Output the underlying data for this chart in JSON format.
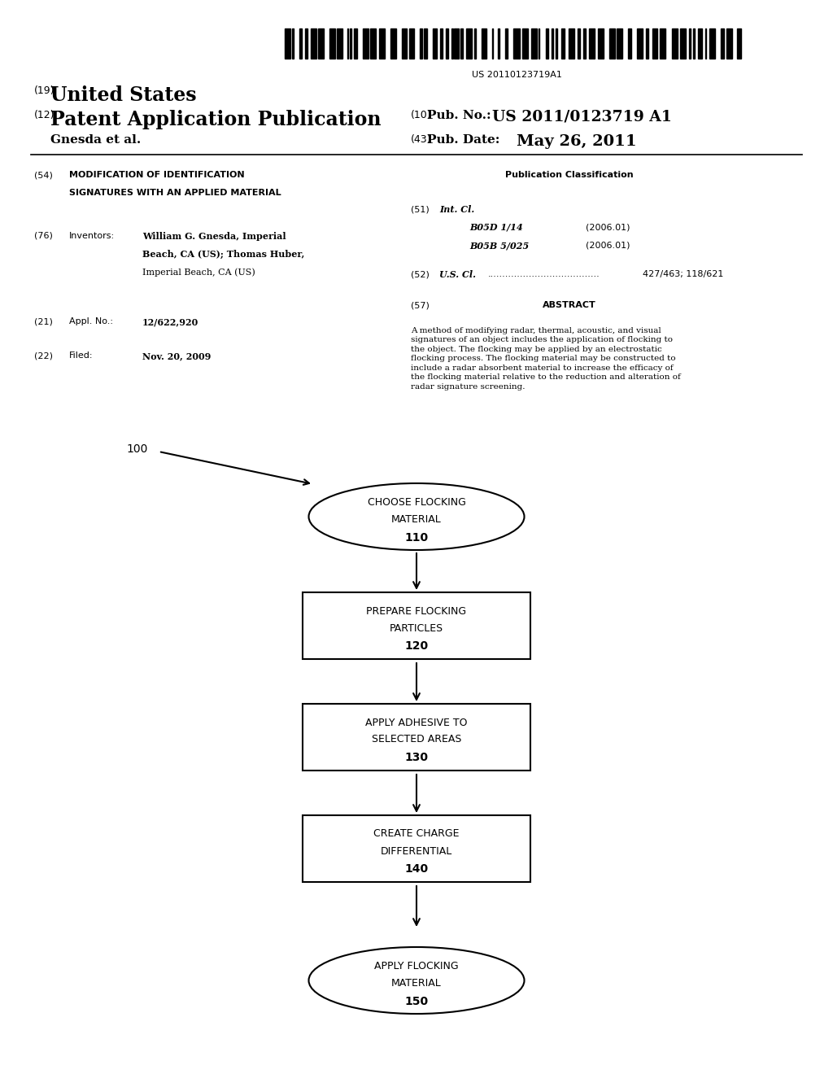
{
  "bg_color": "#ffffff",
  "barcode_text": "US 20110123719A1",
  "header_line1_num": "(19)",
  "header_line1_text": "United States",
  "header_line2_num": "(12)",
  "header_line2_text": "Patent Application Publication",
  "header_line2_right_num": "(10)",
  "header_line2_right_label": "Pub. No.:",
  "header_line2_right_val": "US 2011/0123719 A1",
  "header_line3_left": "Gnesda et al.",
  "header_line3_right_num": "(43)",
  "header_line3_right_label": "Pub. Date:",
  "header_line3_right_val": "May 26, 2011",
  "field54_num": "(54)",
  "field54_title1": "MODIFICATION OF IDENTIFICATION",
  "field54_title2": "SIGNATURES WITH AN APPLIED MATERIAL",
  "pub_class_header": "Publication Classification",
  "field51_num": "(51)",
  "field51_label": "Int. Cl.",
  "field51_b1": "B05D 1/14",
  "field51_b1_year": "(2006.01)",
  "field51_b2": "B05B 5/025",
  "field51_b2_year": "(2006.01)",
  "field52_num": "(52)",
  "field52_label": "U.S. Cl.",
  "field52_dots": "......................................",
  "field52_val": "427/463; 118/621",
  "field57_num": "(57)",
  "field57_label": "ABSTRACT",
  "abstract_text": "A method of modifying radar, thermal, acoustic, and visual\nsignatures of an object includes the application of flocking to\nthe object. The flocking may be applied by an electrostatic\nflocking process. The flocking material may be constructed to\ninclude a radar absorbent material to increase the efficacy of\nthe flocking material relative to the reduction and alteration of\nradar signature screening.",
  "field76_num": "(76)",
  "field76_label": "Inventors:",
  "field76_val1": "William G. Gnesda, Imperial",
  "field76_val2": "Beach, CA (US); Thomas Huber,",
  "field76_val3": "Imperial Beach, CA (US)",
  "field21_num": "(21)",
  "field21_label": "Appl. No.:",
  "field21_val": "12/622,920",
  "field22_num": "(22)",
  "field22_label": "Filed:",
  "field22_val": "Nov. 20, 2009",
  "diagram_label": "100",
  "node110_l1": "CHOOSE FLOCKING",
  "node110_l2": "MATERIAL",
  "node110_l3": "110",
  "node120_l1": "PREPARE FLOCKING",
  "node120_l2": "PARTICLES",
  "node120_l3": "120",
  "node130_l1": "APPLY ADHESIVE TO",
  "node130_l2": "SELECTED AREAS",
  "node130_l3": "130",
  "node140_l1": "CREATE CHARGE",
  "node140_l2": "DIFFERENTIAL",
  "node140_l3": "140",
  "node150_l1": "APPLY FLOCKING",
  "node150_l2": "MATERIAL",
  "node150_l3": "150"
}
